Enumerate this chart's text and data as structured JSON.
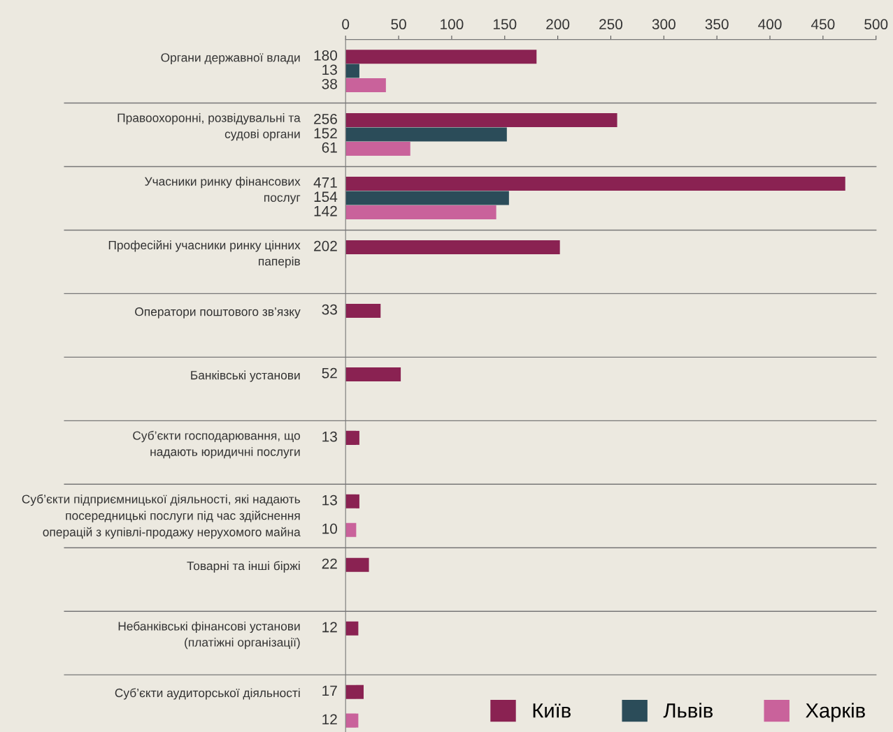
{
  "chart_data": {
    "type": "bar",
    "orientation": "horizontal",
    "categories": [
      "Органи державної влади",
      "Правоохоронні, розвідувальні та\nсудові органи",
      "Учасники ринку фінансових\nпослуг",
      "Професійні учасники ринку цінних\nпаперів",
      "Оператори поштового зв’язку",
      "Банківські установи",
      "Суб’єкти господарювання, що\nнадають юридичні послуги",
      "Суб’єкти підприємницької діяльності, які надають\nпосередницькі послуги під час здійснення\nоперацій з купівлі-продажу нерухомого майна",
      "Товарні та інші біржі",
      "Небанківські фінансові установи\n(платіжні організації)",
      "Суб’єкти аудиторської діяльності"
    ],
    "series": [
      {
        "name": "Київ",
        "color": "#8a2252",
        "values": [
          180,
          256,
          471,
          202,
          33,
          52,
          13,
          13,
          22,
          12,
          17
        ]
      },
      {
        "name": "Львів",
        "color": "#2b4c59",
        "values": [
          13,
          152,
          154,
          null,
          null,
          null,
          null,
          null,
          null,
          null,
          null
        ]
      },
      {
        "name": "Харків",
        "color": "#c9629b",
        "values": [
          38,
          61,
          142,
          null,
          null,
          null,
          null,
          10,
          null,
          null,
          12
        ]
      }
    ],
    "xlim": [
      0,
      500
    ],
    "xticks": [
      0,
      50,
      100,
      150,
      200,
      250,
      300,
      350,
      400,
      450,
      500
    ],
    "data_labels": true,
    "grid": "y",
    "legend": "bottom right"
  }
}
